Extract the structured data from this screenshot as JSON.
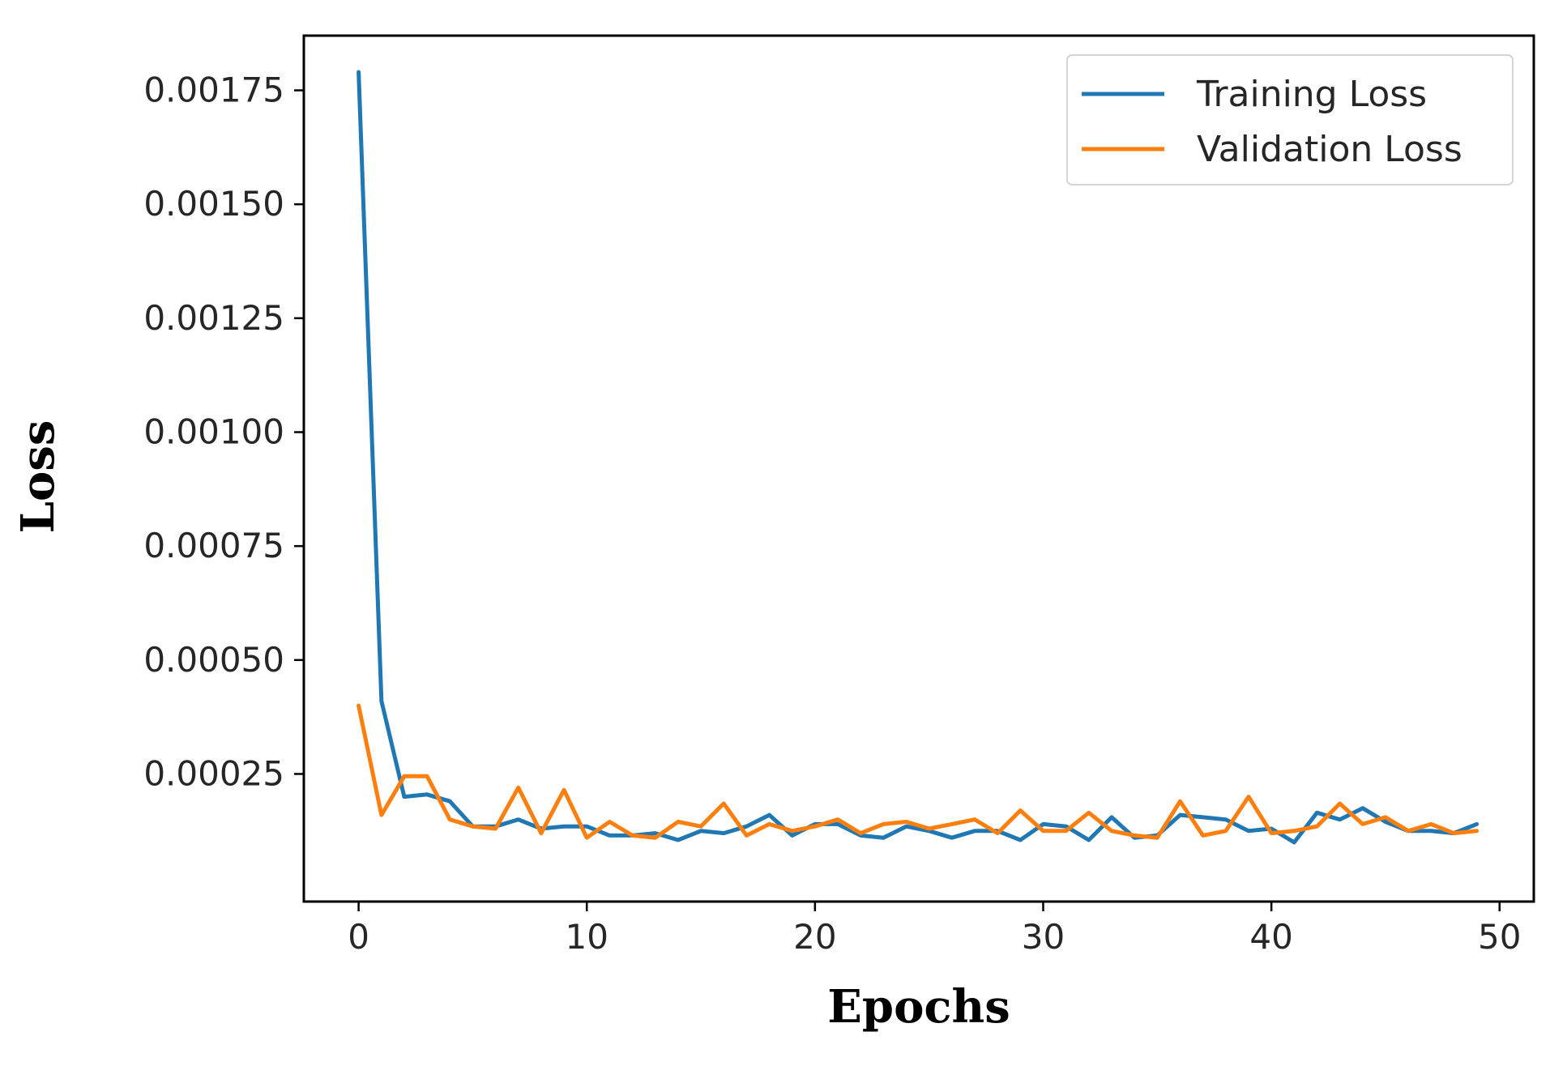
{
  "chart_data": {
    "type": "line",
    "title": "",
    "xlabel": "Epochs",
    "ylabel": "Loss",
    "xlim": [
      -2.4,
      51.5
    ],
    "ylim": [
      -3e-05,
      0.00187
    ],
    "xticks": [
      0,
      10,
      20,
      30,
      40,
      50
    ],
    "xtick_labels": [
      "0",
      "10",
      "20",
      "30",
      "40",
      "50"
    ],
    "yticks": [
      0.00025,
      0.0005,
      0.00075,
      0.001,
      0.00125,
      0.0015,
      0.00175
    ],
    "ytick_labels": [
      "0.00025",
      "0.00050",
      "0.00075",
      "0.00100",
      "0.00125",
      "0.00150",
      "0.00175"
    ],
    "grid": false,
    "legend_position": "top-right",
    "x": [
      0,
      1,
      2,
      3,
      4,
      5,
      6,
      7,
      8,
      9,
      10,
      11,
      12,
      13,
      14,
      15,
      16,
      17,
      18,
      19,
      20,
      21,
      22,
      23,
      24,
      25,
      26,
      27,
      28,
      29,
      30,
      31,
      32,
      33,
      34,
      35,
      36,
      37,
      38,
      39,
      40,
      41,
      42,
      43,
      44,
      45,
      46,
      47,
      48,
      49
    ],
    "series": [
      {
        "name": "Training Loss",
        "color": "#1f77b4",
        "values": [
          0.00179,
          0.00041,
          0.0002,
          0.000205,
          0.00019,
          0.000135,
          0.000135,
          0.00015,
          0.00013,
          0.000135,
          0.000135,
          0.000115,
          0.000115,
          0.00012,
          0.000105,
          0.000125,
          0.00012,
          0.000135,
          0.00016,
          0.000115,
          0.00014,
          0.00014,
          0.000115,
          0.00011,
          0.000135,
          0.000125,
          0.00011,
          0.000125,
          0.000125,
          0.000105,
          0.00014,
          0.000135,
          0.000105,
          0.000155,
          0.00011,
          0.000115,
          0.00016,
          0.000155,
          0.00015,
          0.000125,
          0.00013,
          0.0001,
          0.000165,
          0.00015,
          0.000175,
          0.000145,
          0.000125,
          0.000125,
          0.00012,
          0.00014
        ]
      },
      {
        "name": "Validation Loss",
        "color": "#ff7f0e",
        "values": [
          0.0004,
          0.00016,
          0.000245,
          0.000245,
          0.00015,
          0.000135,
          0.00013,
          0.00022,
          0.00012,
          0.000215,
          0.00011,
          0.000145,
          0.000115,
          0.00011,
          0.000145,
          0.000135,
          0.000185,
          0.000115,
          0.00014,
          0.000125,
          0.000135,
          0.00015,
          0.00012,
          0.00014,
          0.000145,
          0.00013,
          0.00014,
          0.00015,
          0.00012,
          0.00017,
          0.000125,
          0.000125,
          0.000165,
          0.000125,
          0.000115,
          0.00011,
          0.00019,
          0.000115,
          0.000125,
          0.0002,
          0.00012,
          0.000125,
          0.000135,
          0.000185,
          0.00014,
          0.000155,
          0.000125,
          0.00014,
          0.00012,
          0.000125
        ]
      }
    ]
  }
}
